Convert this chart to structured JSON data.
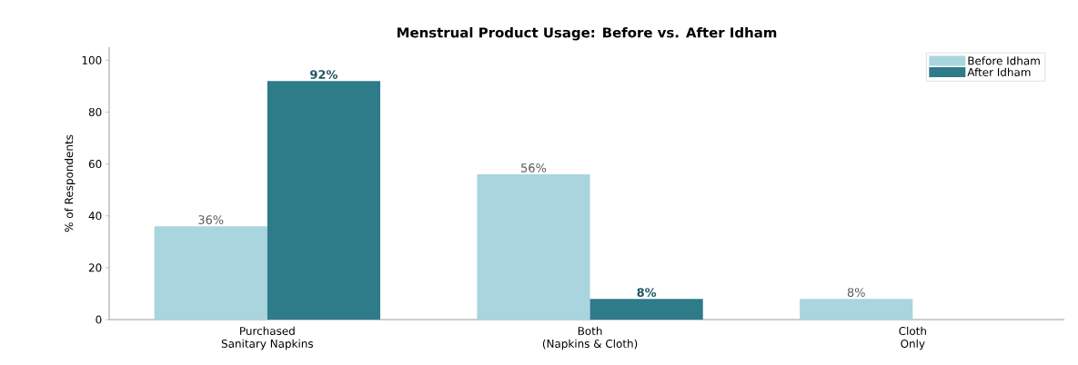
{
  "chart_data": {
    "type": "bar",
    "title": "Menstrual Product Usage: Before vs. After Idham",
    "ylabel": "% of Respondents",
    "categories": [
      "Purchased\nSanitary Napkins",
      "Both\n(Napkins & Cloth)",
      "Cloth\nOnly"
    ],
    "series": [
      {
        "name": "Before Idham",
        "color": "#a8d5de",
        "values": [
          36,
          56,
          8
        ],
        "value_labels": [
          "36%",
          "56%",
          "8%"
        ]
      },
      {
        "name": "After Idham",
        "color": "#2e7b8a",
        "values": [
          92,
          8,
          0
        ],
        "value_labels": [
          "92%",
          "8%",
          null
        ]
      }
    ],
    "ylim": [
      0,
      105
    ],
    "yticks": [
      0,
      20,
      40,
      60,
      80,
      100
    ],
    "grid": false,
    "legend": "top right"
  }
}
